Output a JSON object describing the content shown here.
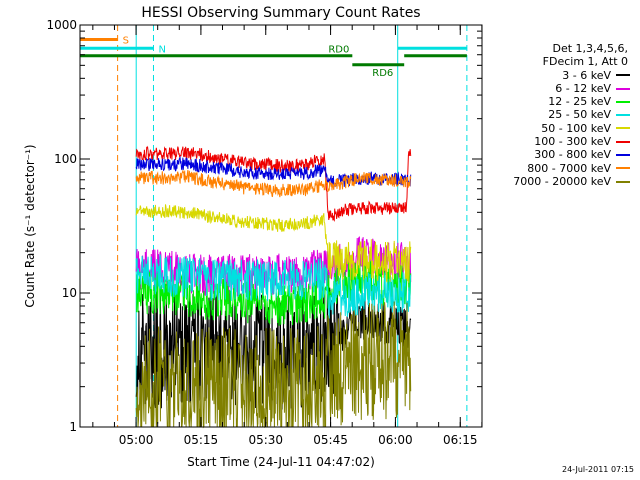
{
  "chart_data": {
    "type": "line",
    "title": "HESSI Observing Summary Count Rates",
    "xlabel": "Start Time (24-Jul-11 04:47:02)",
    "ylabel": "Count Rate (s⁻¹ detector⁻¹)",
    "yscale": "log",
    "ylim": [
      1,
      1000
    ],
    "xlim_minutes": [
      0,
      93
    ],
    "x_ticks": [
      {
        "label": "05:00",
        "t": 12.97
      },
      {
        "label": "05:15",
        "t": 27.97
      },
      {
        "label": "05:30",
        "t": 42.97
      },
      {
        "label": "05:45",
        "t": 57.97
      },
      {
        "label": "06:00",
        "t": 72.97
      },
      {
        "label": "06:15",
        "t": 87.97
      }
    ],
    "y_ticks": [
      {
        "label": "1",
        "v": 1
      },
      {
        "label": "10",
        "v": 10
      },
      {
        "label": "100",
        "v": 100
      },
      {
        "label": "1000",
        "v": 1000
      }
    ],
    "legend_header": [
      "Det 1,3,4,5,6,",
      "FDecim 1, Att 0"
    ],
    "legend_position": "right",
    "data_interval_minutes": [
      13,
      76.5
    ],
    "series": [
      {
        "name": "3 - 6 keV",
        "color": "#000000",
        "points": [
          [
            13,
            3.8
          ],
          [
            20,
            3.9
          ],
          [
            30,
            3.8
          ],
          [
            40,
            3.7
          ],
          [
            50,
            3.8
          ],
          [
            56.5,
            4.0
          ],
          [
            57.5,
            4.5
          ],
          [
            62,
            5.5
          ],
          [
            66,
            6.5
          ],
          [
            70,
            6.0
          ],
          [
            76,
            5.5
          ]
        ]
      },
      {
        "name": "6 - 12 keV",
        "color": "#dd00dd",
        "points": [
          [
            13,
            15
          ],
          [
            20,
            14.5
          ],
          [
            30,
            13.5
          ],
          [
            40,
            13.5
          ],
          [
            50,
            14
          ],
          [
            56.5,
            15
          ],
          [
            57.5,
            16.5
          ],
          [
            62,
            17
          ],
          [
            66,
            19
          ],
          [
            70,
            17
          ],
          [
            76,
            16.5
          ]
        ]
      },
      {
        "name": "12 - 25 keV",
        "color": "#00ee00",
        "points": [
          [
            13,
            10
          ],
          [
            20,
            10
          ],
          [
            25,
            9.5
          ],
          [
            30,
            9
          ],
          [
            40,
            8.5
          ],
          [
            50,
            8
          ],
          [
            56.5,
            9
          ],
          [
            57.5,
            11
          ],
          [
            62,
            12
          ],
          [
            66,
            13
          ],
          [
            70,
            11.5
          ],
          [
            76,
            11
          ]
        ]
      },
      {
        "name": "25 - 50 keV",
        "color": "#00e0e0",
        "points": [
          [
            13,
            14
          ],
          [
            20,
            13.5
          ],
          [
            30,
            12.5
          ],
          [
            40,
            12.5
          ],
          [
            50,
            12.5
          ],
          [
            56.5,
            13
          ],
          [
            57.5,
            9
          ],
          [
            62,
            9.5
          ],
          [
            66,
            10
          ],
          [
            70,
            10
          ],
          [
            76,
            10
          ]
        ]
      },
      {
        "name": "50 - 100 keV",
        "color": "#d8d800",
        "points": [
          [
            13,
            40
          ],
          [
            20,
            41
          ],
          [
            25,
            40
          ],
          [
            30,
            37
          ],
          [
            38,
            34
          ],
          [
            46,
            32
          ],
          [
            52,
            33
          ],
          [
            56.5,
            36
          ],
          [
            57.5,
            17
          ],
          [
            62,
            18
          ],
          [
            66,
            18
          ],
          [
            70,
            17
          ],
          [
            76,
            17
          ]
        ]
      },
      {
        "name": "100 - 300 keV",
        "color": "#ee0000",
        "points": [
          [
            13,
            110
          ],
          [
            20,
            108
          ],
          [
            24,
            112
          ],
          [
            28,
            108
          ],
          [
            32,
            100
          ],
          [
            40,
            92
          ],
          [
            48,
            88
          ],
          [
            52,
            90
          ],
          [
            56.5,
            102
          ],
          [
            57.5,
            38
          ],
          [
            62,
            42
          ],
          [
            66,
            43
          ],
          [
            70,
            43
          ],
          [
            75.5,
            43
          ],
          [
            76,
            110
          ]
        ]
      },
      {
        "name": "300 - 800 keV",
        "color": "#0000dd",
        "points": [
          [
            13,
            92
          ],
          [
            20,
            90
          ],
          [
            25,
            92
          ],
          [
            30,
            87
          ],
          [
            38,
            80
          ],
          [
            46,
            77
          ],
          [
            52,
            78
          ],
          [
            56.5,
            84
          ],
          [
            57.5,
            67
          ],
          [
            62,
            70
          ],
          [
            66,
            72
          ],
          [
            70,
            71
          ],
          [
            76,
            71
          ]
        ]
      },
      {
        "name": "800 - 7000 keV",
        "color": "#ff8000",
        "points": [
          [
            13,
            73
          ],
          [
            20,
            72
          ],
          [
            25,
            74
          ],
          [
            30,
            68
          ],
          [
            38,
            61
          ],
          [
            46,
            58
          ],
          [
            52,
            59
          ],
          [
            56.5,
            64
          ],
          [
            57.5,
            62
          ],
          [
            62,
            68
          ],
          [
            66,
            73
          ],
          [
            70,
            70
          ],
          [
            76,
            68
          ]
        ]
      },
      {
        "name": "7000 - 20000 keV",
        "color": "#808000",
        "points": [
          [
            13,
            2.0
          ],
          [
            20,
            2.0
          ],
          [
            30,
            2.0
          ],
          [
            40,
            2.0
          ],
          [
            50,
            2.0
          ],
          [
            56.5,
            2.1
          ],
          [
            57.5,
            2.5
          ],
          [
            62,
            2.8
          ],
          [
            66,
            3.0
          ],
          [
            70,
            3.2
          ],
          [
            76,
            3.3
          ]
        ]
      }
    ],
    "vertical_markers": [
      {
        "t": 0,
        "color": "#00e0e0",
        "style": "solid"
      },
      {
        "t": 8.7,
        "color": "#ff8000",
        "style": "dashed"
      },
      {
        "t": 13,
        "color": "#00e0e0",
        "style": "solid"
      },
      {
        "t": 17,
        "color": "#00e0e0",
        "style": "dashed"
      },
      {
        "t": 73.5,
        "color": "#00e0e0",
        "style": "solid"
      },
      {
        "t": 89.5,
        "color": "#00e0e0",
        "style": "dashed"
      }
    ],
    "flag_bars": [
      {
        "label": "S",
        "color": "#ff8000",
        "segments": [
          [
            0,
            8.7
          ]
        ],
        "v": 780
      },
      {
        "label": "N",
        "color": "#00e0e0",
        "segments": [
          [
            0,
            17
          ],
          [
            73.5,
            89.5
          ]
        ],
        "v": 670
      },
      {
        "label": "RD0",
        "color": "#007a00",
        "segments": [
          [
            0,
            63
          ],
          [
            75,
            89.5
          ]
        ],
        "v": 590
      },
      {
        "label": "RD6",
        "color": "#007a00",
        "segments": [
          [
            63,
            75
          ]
        ],
        "v": 505
      }
    ]
  },
  "footer": {
    "timestamp": "24-Jul-2011 07:15"
  }
}
